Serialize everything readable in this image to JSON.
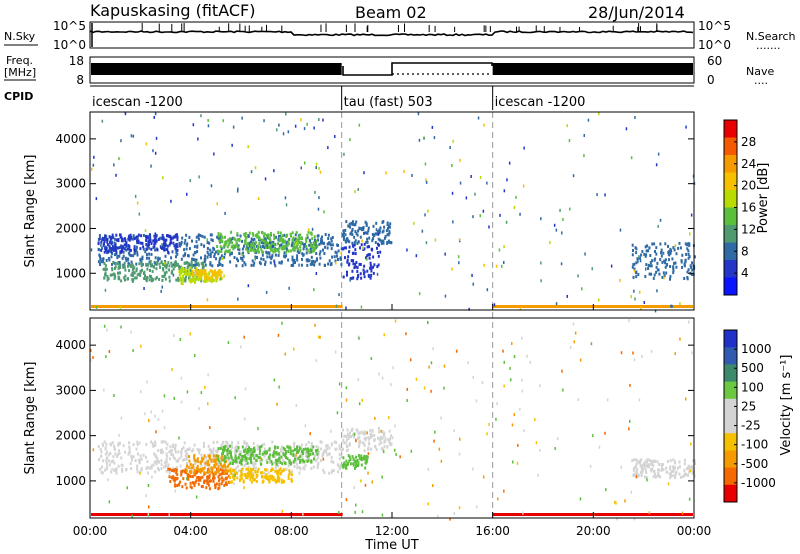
{
  "header": {
    "title": "Kapuskasing (fitACF)",
    "beam": "Beam 02",
    "date": "28/Jun/2014"
  },
  "nsky_panel": {
    "left_label": "N.Sky",
    "left_ticks": [
      "10^5",
      "10^0"
    ],
    "right_ticks": [
      "10^5",
      "10^0"
    ],
    "right_label": "N.Search",
    "right_legend": "......."
  },
  "freq_panel": {
    "left_label_line1": "Freq.",
    "left_label_line2": "[MHz]",
    "left_ticks": [
      "18",
      "8"
    ],
    "right_ticks": [
      "60",
      "0"
    ],
    "right_label": "Nave",
    "right_legend": "...."
  },
  "cpid_panel": {
    "label": "CPID",
    "segments": [
      {
        "start_hour": 0,
        "end_hour": 10,
        "text": "icescan -1200"
      },
      {
        "start_hour": 10,
        "end_hour": 16,
        "text": "tau (fast) 503"
      },
      {
        "start_hour": 16,
        "end_hour": 24,
        "text": "icescan -1200"
      }
    ]
  },
  "x_axis": {
    "label": "Time UT",
    "ticks": [
      "00:00",
      "04:00",
      "08:00",
      "12:00",
      "16:00",
      "20:00",
      "00:00"
    ],
    "range_hours": [
      0,
      24
    ]
  },
  "power_panel": {
    "ylabel": "Slant Range [km]",
    "yticks": [
      1000,
      2000,
      3000,
      4000
    ],
    "ylim": [
      180,
      4600
    ],
    "colorbar_label": "Power [dB]",
    "colorbar_ticks": [
      "28",
      "24",
      "20",
      "16",
      "12",
      "8",
      "4"
    ],
    "colorbar_colors": [
      "#e80000",
      "#f55a00",
      "#f59b00",
      "#f5c000",
      "#b8dc00",
      "#5cbf3c",
      "#4f9a70",
      "#2f6aa5",
      "#2436c8",
      "#0a14ff"
    ]
  },
  "velocity_panel": {
    "ylabel": "Slant Range [km]",
    "yticks": [
      1000,
      2000,
      3000,
      4000
    ],
    "ylim": [
      180,
      4600
    ],
    "colorbar_label": "Velocity [m s⁻¹]",
    "colorbar_ticks": [
      "1000",
      "500",
      "100",
      "25",
      "-25",
      "-100",
      "-500",
      "-1000"
    ],
    "colorbar_colors": [
      "#2030c8",
      "#305ab0",
      "#3c8a6c",
      "#6cc840",
      "#d4d4d4",
      "#d4d4d4",
      "#f5c000",
      "#f59b00",
      "#f56a00",
      "#e80000"
    ]
  },
  "chart_data": {
    "type": "heatmap",
    "title": "Kapuskasing (fitACF)",
    "xlabel": "Time UT",
    "ylabel": "Slant Range [km]",
    "xlim": [
      0,
      24
    ],
    "ylim": [
      180,
      4600
    ],
    "mode_change_hours": [
      10,
      16
    ],
    "power_regions": [
      {
        "t0": 0.3,
        "t1": 10.0,
        "r0": 1200,
        "r1": 1900,
        "color": "#2f6aa5"
      },
      {
        "t0": 0.3,
        "t1": 3.5,
        "r0": 1500,
        "r1": 1900,
        "color": "#2436c8"
      },
      {
        "t0": 0.5,
        "t1": 4.5,
        "r0": 850,
        "r1": 1300,
        "color": "#4f9a70"
      },
      {
        "t0": 3.5,
        "t1": 5.0,
        "r0": 800,
        "r1": 1150,
        "color": "#b8dc00"
      },
      {
        "t0": 4.0,
        "t1": 5.2,
        "r0": 900,
        "r1": 1100,
        "color": "#f5c000"
      },
      {
        "t0": 5.0,
        "t1": 9.0,
        "r0": 1500,
        "r1": 1950,
        "color": "#5cbf3c"
      },
      {
        "t0": 10.0,
        "t1": 11.5,
        "r0": 900,
        "r1": 1700,
        "color": "#2436c8"
      },
      {
        "t0": 10.0,
        "t1": 12.0,
        "r0": 1700,
        "r1": 2200,
        "color": "#2f6aa5"
      },
      {
        "t0": 21.5,
        "t1": 24.0,
        "r0": 900,
        "r1": 1700,
        "color": "#2f6aa5"
      }
    ],
    "velocity_regions": [
      {
        "t0": 0.3,
        "t1": 10.0,
        "r0": 1200,
        "r1": 1900,
        "color": "#d4d4d4"
      },
      {
        "t0": 3.0,
        "t1": 5.5,
        "r0": 850,
        "r1": 1300,
        "color": "#f56a00"
      },
      {
        "t0": 3.8,
        "t1": 5.5,
        "r0": 1200,
        "r1": 1600,
        "color": "#f59b00"
      },
      {
        "t0": 5.0,
        "t1": 9.0,
        "r0": 1400,
        "r1": 1800,
        "color": "#5cbf3c"
      },
      {
        "t0": 5.5,
        "t1": 8.0,
        "r0": 1000,
        "r1": 1300,
        "color": "#f5c000"
      },
      {
        "t0": 10.0,
        "t1": 12.0,
        "r0": 1700,
        "r1": 2200,
        "color": "#d4d4d4"
      },
      {
        "t0": 10.0,
        "t1": 11.0,
        "r0": 1300,
        "r1": 1600,
        "color": "#5cbf3c"
      },
      {
        "t0": 21.5,
        "t1": 24.0,
        "r0": 1100,
        "r1": 1500,
        "color": "#d4d4d4"
      }
    ]
  }
}
